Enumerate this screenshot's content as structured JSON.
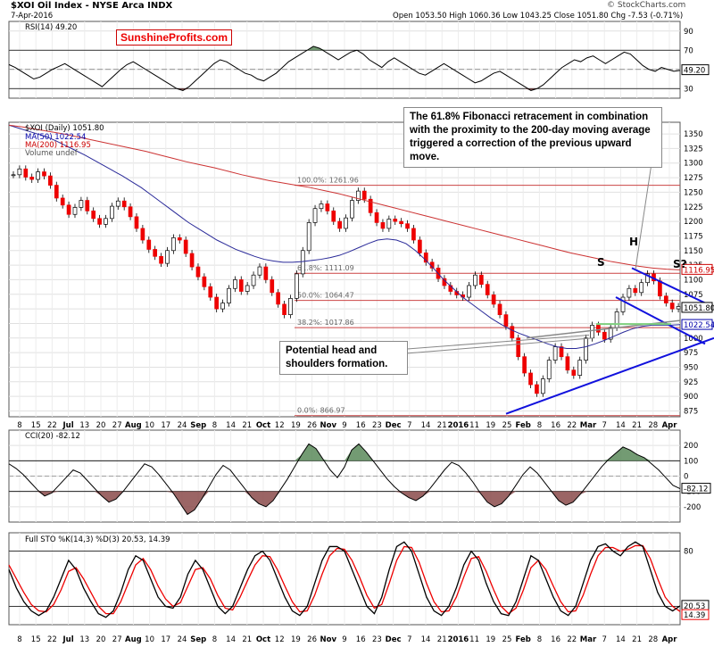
{
  "header": {
    "title": "$XOI Oil Index - NYSE Arca INDX",
    "date": "7-Apr-2016",
    "quote": "Open 1053.50  High 1060.36  Low 1043.25  Close 1051.80  Chg -7.53 (-0.71%)",
    "watermark": "© StockCharts.com"
  },
  "logo": "SunshineProfits.com",
  "annotations": {
    "fib_note": [
      "The 61.8% Fibonacci retracement in combination",
      "with the proximity to the 200-day moving average",
      "triggered a correction of the previous upward move."
    ],
    "hs_note": [
      "Potential head and",
      "shoulders formation."
    ],
    "S": "S",
    "H": "H",
    "S2": "S?"
  },
  "chart_data": [
    {
      "type": "line",
      "title": "RSI(14) 49.20",
      "value": 49.2,
      "ylim": [
        20,
        100
      ],
      "yticks": [
        90,
        70,
        50,
        30
      ],
      "levels": [
        70,
        30
      ],
      "series": [
        {
          "name": "RSI(14)",
          "values": [
            55,
            52,
            48,
            44,
            40,
            42,
            46,
            50,
            53,
            56,
            52,
            48,
            44,
            40,
            36,
            32,
            38,
            44,
            50,
            55,
            58,
            54,
            50,
            46,
            42,
            38,
            34,
            30,
            28,
            32,
            38,
            44,
            50,
            56,
            60,
            58,
            54,
            50,
            46,
            44,
            40,
            38,
            42,
            46,
            52,
            58,
            62,
            66,
            70,
            74,
            72,
            68,
            64,
            60,
            64,
            68,
            70,
            66,
            60,
            56,
            52,
            58,
            62,
            58,
            54,
            50,
            46,
            44,
            48,
            52,
            56,
            52,
            48,
            44,
            40,
            36,
            38,
            42,
            46,
            48,
            44,
            40,
            36,
            32,
            28,
            30,
            34,
            40,
            46,
            52,
            56,
            60,
            58,
            62,
            64,
            60,
            56,
            60,
            64,
            68,
            66,
            60,
            54,
            50,
            48,
            52,
            50,
            48,
            49
          ]
        }
      ],
      "last_label": "49.20"
    },
    {
      "type": "line",
      "title": "$XOI (Daily) 1051.80",
      "legend": [
        "MA(50) 1022.54",
        "MA(200) 1116.95",
        "Volume undef"
      ],
      "ylim": [
        865,
        1370
      ],
      "yticks": [
        1350,
        1325,
        1300,
        1275,
        1250,
        1225,
        1200,
        1175,
        1150,
        1125,
        1100,
        1075,
        1050,
        1025,
        1000,
        975,
        950,
        925,
        900,
        875
      ],
      "xticks": [
        "8",
        "15",
        "22",
        "Jul",
        "13",
        "20",
        "27",
        "Aug",
        "10",
        "17",
        "24",
        "Sep",
        "8",
        "14",
        "21",
        "Oct",
        "12",
        "19",
        "26",
        "Nov",
        "9",
        "16",
        "23",
        "Dec",
        "7",
        "14",
        "21",
        "2016",
        "11",
        "19",
        "25",
        "Feb",
        "8",
        "16",
        "22",
        "Mar",
        "7",
        "14",
        "21",
        "28",
        "Apr"
      ],
      "price": [
        1280,
        1290,
        1276,
        1272,
        1285,
        1278,
        1262,
        1240,
        1228,
        1212,
        1224,
        1236,
        1218,
        1205,
        1195,
        1205,
        1226,
        1235,
        1225,
        1208,
        1188,
        1168,
        1152,
        1140,
        1128,
        1150,
        1172,
        1168,
        1145,
        1122,
        1105,
        1088,
        1070,
        1050,
        1060,
        1085,
        1100,
        1080,
        1090,
        1108,
        1122,
        1100,
        1078,
        1058,
        1040,
        1068,
        1110,
        1150,
        1198,
        1222,
        1230,
        1218,
        1200,
        1188,
        1206,
        1236,
        1252,
        1238,
        1215,
        1198,
        1188,
        1204,
        1200,
        1196,
        1188,
        1168,
        1146,
        1130,
        1120,
        1102,
        1090,
        1080,
        1074,
        1070,
        1090,
        1108,
        1092,
        1074,
        1058,
        1040,
        1020,
        1000,
        968,
        940,
        920,
        905,
        930,
        962,
        985,
        968,
        945,
        936,
        962,
        1000,
        1022,
        1010,
        998,
        1018,
        1045,
        1070,
        1085,
        1078,
        1095,
        1110,
        1098,
        1072,
        1060,
        1050,
        1054,
        1052
      ],
      "ma50": [
        1365,
        1360,
        1355,
        1350,
        1345,
        1338,
        1330,
        1322,
        1314,
        1305,
        1296,
        1287,
        1278,
        1268,
        1258,
        1246,
        1234,
        1222,
        1210,
        1198,
        1188,
        1178,
        1168,
        1160,
        1152,
        1146,
        1140,
        1135,
        1132,
        1130,
        1130,
        1131,
        1133,
        1135,
        1138,
        1142,
        1148,
        1155,
        1162,
        1168,
        1170,
        1168,
        1162,
        1150,
        1135,
        1118,
        1100,
        1085,
        1070,
        1058,
        1046,
        1034,
        1024,
        1015,
        1008,
        1002,
        996,
        990,
        985,
        982,
        982,
        985,
        990,
        996,
        1003,
        1010,
        1016,
        1020,
        1022,
        1022,
        1022,
        1023
      ],
      "ma200": [
        1365,
        1362,
        1358,
        1354,
        1350,
        1345,
        1340,
        1335,
        1330,
        1325,
        1320,
        1314,
        1308,
        1302,
        1297,
        1292,
        1286,
        1280,
        1275,
        1270,
        1266,
        1262,
        1258,
        1253,
        1248,
        1242,
        1236,
        1230,
        1224,
        1218,
        1212,
        1206,
        1200,
        1194,
        1188,
        1182,
        1176,
        1170,
        1164,
        1158,
        1152,
        1146,
        1141,
        1136,
        1131,
        1127,
        1123,
        1120,
        1118,
        1117
      ],
      "fib_levels": [
        {
          "label": "100.0%: 1261.96",
          "value": 1261.96
        },
        {
          "label": "61.8%: 1111.09",
          "value": 1111.09
        },
        {
          "label": "50.0%: 1064.47",
          "value": 1064.47
        },
        {
          "label": "38.2%: 1017.86",
          "value": 1017.86
        },
        {
          "label": "0.0%: 866.97",
          "value": 866.97
        }
      ],
      "price_labels": [
        {
          "label": "1116.95",
          "value": 1116.95,
          "color": "#cc0000"
        },
        {
          "label": "1051.80",
          "value": 1051.8,
          "color": "#000000"
        },
        {
          "label": "1022.54",
          "value": 1022.54,
          "color": "#0000aa"
        }
      ],
      "last_label": "1051.80"
    },
    {
      "type": "line",
      "title": "CCI(20) -82.12",
      "value": -82.12,
      "ylim": [
        -300,
        300
      ],
      "yticks": [
        200,
        100,
        0,
        -100,
        -200
      ],
      "levels": [
        100,
        0,
        -100
      ],
      "series": [
        {
          "name": "CCI(20)",
          "values": [
            80,
            50,
            10,
            -40,
            -90,
            -130,
            -110,
            -60,
            -10,
            40,
            20,
            -30,
            -80,
            -130,
            -170,
            -150,
            -100,
            -40,
            20,
            80,
            60,
            10,
            -50,
            -110,
            -180,
            -250,
            -220,
            -150,
            -70,
            10,
            70,
            40,
            -20,
            -80,
            -140,
            -180,
            -200,
            -160,
            -90,
            -20,
            60,
            140,
            210,
            180,
            110,
            40,
            -10,
            60,
            170,
            210,
            160,
            100,
            40,
            -20,
            -70,
            -110,
            -140,
            -160,
            -130,
            -80,
            -20,
            40,
            90,
            70,
            20,
            -40,
            -110,
            -170,
            -200,
            -180,
            -130,
            -60,
            10,
            60,
            20,
            -40,
            -100,
            -160,
            -190,
            -170,
            -120,
            -60,
            0,
            60,
            110,
            150,
            190,
            170,
            140,
            120,
            80,
            40,
            -10,
            -60,
            -82
          ]
        }
      ],
      "last_label": "-82.12"
    },
    {
      "type": "line",
      "title": "Full STO %K(14,3) %D(3) 20.53, 14.39",
      "ylim": [
        0,
        100
      ],
      "yticks": [
        80,
        20
      ],
      "levels": [
        80,
        20
      ],
      "series": [
        {
          "name": "%K",
          "values": [
            60,
            40,
            25,
            15,
            10,
            15,
            30,
            50,
            70,
            60,
            40,
            25,
            12,
            8,
            15,
            35,
            60,
            75,
            70,
            50,
            30,
            20,
            18,
            30,
            55,
            70,
            60,
            40,
            20,
            12,
            20,
            40,
            60,
            75,
            80,
            70,
            50,
            30,
            15,
            10,
            20,
            45,
            70,
            85,
            85,
            80,
            60,
            40,
            20,
            12,
            30,
            60,
            85,
            90,
            80,
            55,
            30,
            15,
            10,
            20,
            40,
            65,
            80,
            70,
            45,
            25,
            12,
            10,
            25,
            50,
            75,
            70,
            50,
            30,
            15,
            10,
            20,
            45,
            70,
            85,
            88,
            80,
            75,
            85,
            90,
            85,
            60,
            35,
            20,
            15,
            20.53
          ]
        },
        {
          "name": "%D",
          "values": [
            65,
            50,
            35,
            22,
            15,
            14,
            22,
            38,
            58,
            62,
            50,
            35,
            20,
            12,
            12,
            25,
            45,
            65,
            72,
            60,
            42,
            28,
            20,
            24,
            42,
            60,
            62,
            50,
            32,
            18,
            16,
            30,
            48,
            65,
            75,
            74,
            60,
            42,
            25,
            14,
            15,
            32,
            55,
            75,
            83,
            82,
            70,
            52,
            32,
            18,
            22,
            45,
            70,
            85,
            84,
            68,
            45,
            25,
            14,
            15,
            30,
            52,
            72,
            74,
            58,
            38,
            20,
            12,
            18,
            38,
            62,
            70,
            60,
            42,
            25,
            14,
            15,
            32,
            55,
            75,
            84,
            84,
            80,
            82,
            86,
            86,
            72,
            50,
            30,
            20,
            14.39
          ]
        }
      ],
      "last_label": "20.53",
      "last_label2": "14.39"
    }
  ]
}
